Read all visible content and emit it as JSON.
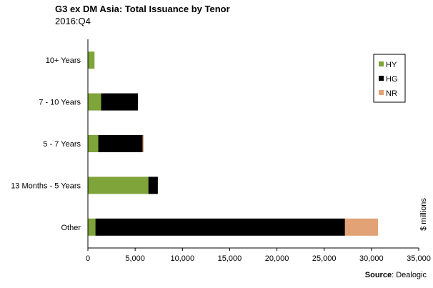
{
  "title": "G3 ex DM Asia:  Total Issuance by Tenor",
  "subtitle": "2016:Q4",
  "source": {
    "label": "Source",
    "text": ": Dealogic"
  },
  "colors": {
    "HY": "#7ea43a",
    "HG": "#000000",
    "NR": "#e2a275"
  },
  "chart_data": {
    "type": "bar",
    "orientation": "horizontal",
    "stacked": true,
    "categories": [
      "10+ Years",
      "7 - 10 Years",
      "5 - 7 Years",
      "13 Months - 5 Years",
      "Other"
    ],
    "series": [
      {
        "name": "HY",
        "values": [
          700,
          1400,
          1100,
          6400,
          800
        ]
      },
      {
        "name": "HG",
        "values": [
          0,
          3900,
          4700,
          1000,
          26400
        ]
      },
      {
        "name": "NR",
        "values": [
          0,
          0,
          100,
          0,
          3500
        ]
      }
    ],
    "xlim": [
      0,
      35000
    ],
    "xticks": [
      "0",
      "5,000",
      "10,000",
      "15,000",
      "20,000",
      "25,000",
      "30,000",
      "35,000"
    ],
    "xtick_values": [
      0,
      5000,
      10000,
      15000,
      20000,
      25000,
      30000,
      35000
    ],
    "axis_unit_label": "$ millions",
    "legend": {
      "position": "top-right",
      "entries": [
        "HY",
        "HG",
        "NR"
      ]
    },
    "grid": false
  }
}
